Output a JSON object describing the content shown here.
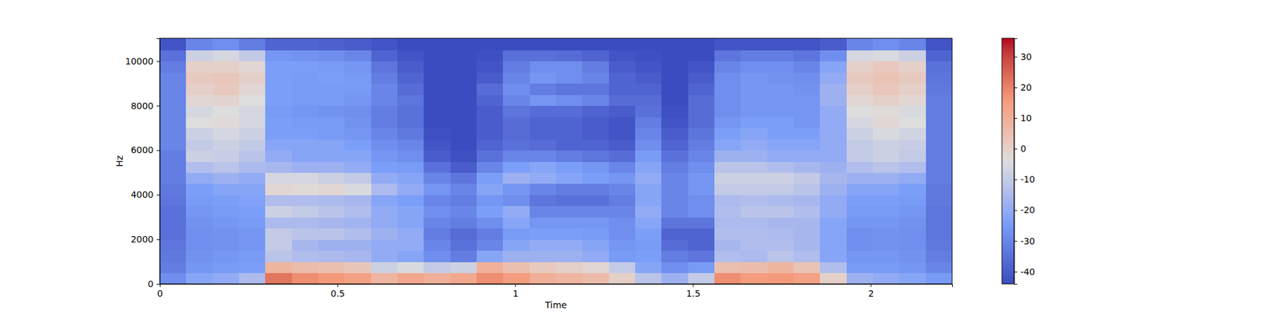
{
  "chart_data": {
    "type": "heatmap",
    "x_label": "Time",
    "y_label": "Hz",
    "xlim": [
      0,
      2.229
    ],
    "xticks": [
      0,
      0.5,
      1,
      1.5,
      2
    ],
    "ylim": [
      0,
      11025
    ],
    "yticks": [
      0,
      2000,
      4000,
      6000,
      8000,
      10000
    ],
    "x_bins": [
      0,
      0.0743,
      0.1486,
      0.2229,
      0.2972,
      0.3715,
      0.4458,
      0.5201,
      0.5944,
      0.6687,
      0.743,
      0.8173,
      0.8916,
      0.9659,
      1.0402,
      1.1145,
      1.1888,
      1.2631,
      1.3374,
      1.4117,
      1.486,
      1.5603,
      1.6346,
      1.7089,
      1.7832,
      1.8575,
      1.9318,
      2.0061,
      2.0804,
      2.1547,
      2.229
    ],
    "y_bins": [
      0,
      500,
      1000,
      1500,
      2000,
      2500,
      3000,
      3500,
      4000,
      4500,
      5000,
      5500,
      6000,
      6500,
      7000,
      7500,
      8000,
      8500,
      9000,
      9500,
      10000,
      10500,
      11025
    ],
    "z": [
      [
        -28,
        -32,
        -33,
        -34,
        -35,
        -35,
        -35,
        -34,
        -33,
        -32,
        -32,
        -32,
        -30,
        -30,
        -30,
        -30,
        -30,
        -30,
        -30,
        -32,
        -35,
        -42
      ],
      [
        -22,
        -26,
        -27,
        -28,
        -28,
        -27,
        -26,
        -25,
        -24,
        -20,
        -14,
        -8,
        -10,
        -8,
        -4,
        -6,
        -2,
        0,
        2,
        0,
        -8,
        -30
      ],
      [
        -20,
        -25,
        -26,
        -27,
        -27,
        -26,
        -25,
        -24,
        -22,
        -18,
        -12,
        -9,
        -8,
        -6,
        -3,
        -4,
        -1,
        2,
        3,
        0,
        -6,
        -28
      ],
      [
        -15,
        -24,
        -25,
        -26,
        -26,
        -25,
        -24,
        -23,
        -22,
        -20,
        -15,
        -12,
        -10,
        -8,
        -6,
        -6,
        -4,
        -2,
        0,
        -2,
        -10,
        -32
      ],
      [
        22,
        8,
        -12,
        -10,
        -10,
        -15,
        -8,
        -14,
        -2,
        -6,
        -16,
        -20,
        -22,
        -24,
        -24,
        -25,
        -24,
        -24,
        -24,
        -24,
        -26,
        -38
      ],
      [
        18,
        6,
        -14,
        -16,
        -12,
        -15,
        -10,
        -14,
        -3,
        -6,
        -18,
        -22,
        -22,
        -24,
        -25,
        -26,
        -25,
        -25,
        -25,
        -24,
        -27,
        -38
      ],
      [
        16,
        5,
        -15,
        -18,
        -12,
        -16,
        -12,
        -15,
        -2,
        -8,
        -18,
        -22,
        -22,
        -25,
        -25,
        -27,
        -25,
        -25,
        -24,
        -25,
        -28,
        -39
      ],
      [
        14,
        3,
        -16,
        -18,
        -14,
        -17,
        -14,
        -16,
        -5,
        -10,
        -20,
        -22,
        -24,
        -26,
        -27,
        -28,
        -26,
        -25,
        -25,
        -26,
        -30,
        -40
      ],
      [
        8,
        -8,
        -20,
        -20,
        -18,
        -20,
        -20,
        -22,
        -15,
        -20,
        -24,
        -26,
        -28,
        -30,
        -32,
        -32,
        -30,
        -30,
        -32,
        -34,
        -38,
        -42
      ],
      [
        12,
        -5,
        -22,
        -20,
        -20,
        -22,
        -22,
        -24,
        -20,
        -22,
        -25,
        -28,
        -30,
        -33,
        -35,
        -35,
        -34,
        -36,
        -38,
        -40,
        -42,
        -44
      ],
      [
        10,
        -10,
        -28,
        -30,
        -32,
        -30,
        -28,
        -30,
        -26,
        -30,
        -35,
        -40,
        -42,
        -43,
        -44,
        -44,
        -44,
        -44,
        -44,
        -44,
        -44,
        -44
      ],
      [
        12,
        -8,
        -32,
        -35,
        -36,
        -32,
        -30,
        -32,
        -30,
        -34,
        -40,
        -43,
        -44,
        -44,
        -44,
        -44,
        -44,
        -44,
        -44,
        -44,
        -44,
        -44
      ],
      [
        18,
        10,
        -22,
        -30,
        -32,
        -28,
        -24,
        -26,
        -22,
        -24,
        -30,
        -35,
        -38,
        -40,
        -40,
        -40,
        -38,
        -36,
        -40,
        -42,
        -43,
        -44
      ],
      [
        15,
        5,
        -18,
        -22,
        -25,
        -22,
        -20,
        -28,
        -26,
        -18,
        -24,
        -30,
        -35,
        -36,
        -36,
        -34,
        -30,
        -28,
        -30,
        -32,
        -35,
        -44
      ],
      [
        10,
        2,
        -18,
        -20,
        -24,
        -26,
        -30,
        -34,
        -30,
        -20,
        -22,
        -30,
        -36,
        -38,
        -38,
        -36,
        -26,
        -32,
        -26,
        -28,
        -35,
        -44
      ],
      [
        8,
        0,
        -18,
        -20,
        -24,
        -26,
        -30,
        -35,
        -32,
        -22,
        -24,
        -32,
        -38,
        -38,
        -38,
        -36,
        -28,
        -34,
        -28,
        -28,
        -36,
        -44
      ],
      [
        6,
        -2,
        -20,
        -22,
        -25,
        -26,
        -30,
        -35,
        -32,
        -24,
        -26,
        -34,
        -38,
        -40,
        -40,
        -38,
        -30,
        -34,
        -30,
        -32,
        -38,
        -44
      ],
      [
        0,
        -10,
        -25,
        -26,
        -28,
        -28,
        -30,
        -32,
        -30,
        -26,
        -30,
        -36,
        -40,
        -42,
        -42,
        -40,
        -36,
        -38,
        -38,
        -40,
        -42,
        -44
      ],
      [
        -12,
        -22,
        -24,
        -25,
        -24,
        -22,
        -20,
        -22,
        -22,
        -20,
        -22,
        -25,
        -28,
        -30,
        -32,
        -35,
        -36,
        -38,
        -40,
        -42,
        -43,
        -44
      ],
      [
        -18,
        -28,
        -32,
        -36,
        -38,
        -34,
        -30,
        -30,
        -30,
        -30,
        -32,
        -35,
        -38,
        -40,
        -42,
        -43,
        -44,
        -44,
        -44,
        -44,
        -44,
        -44
      ],
      [
        -10,
        -25,
        -34,
        -38,
        -38,
        -34,
        -28,
        -28,
        -26,
        -26,
        -28,
        -30,
        -32,
        -34,
        -36,
        -36,
        -36,
        -38,
        -40,
        -42,
        -44,
        -44
      ],
      [
        18,
        5,
        -14,
        -16,
        -14,
        -15,
        -14,
        -15,
        -10,
        -8,
        -12,
        -18,
        -22,
        -24,
        -26,
        -28,
        -28,
        -28,
        -28,
        -30,
        -34,
        -42
      ],
      [
        15,
        6,
        -15,
        -14,
        -14,
        -15,
        -12,
        -14,
        -10,
        -8,
        -12,
        -18,
        -20,
        -22,
        -24,
        -26,
        -26,
        -26,
        -26,
        -28,
        -32,
        -42
      ],
      [
        16,
        8,
        -12,
        -14,
        -15,
        -16,
        -12,
        -15,
        -10,
        -8,
        -14,
        -20,
        -22,
        -24,
        -24,
        -26,
        -26,
        -26,
        -27,
        -28,
        -32,
        -42
      ],
      [
        14,
        4,
        -14,
        -16,
        -16,
        -16,
        -14,
        -16,
        -12,
        -10,
        -16,
        -20,
        -22,
        -24,
        -26,
        -26,
        -26,
        -27,
        -28,
        -30,
        -34,
        -42
      ],
      [
        0,
        -14,
        -22,
        -22,
        -22,
        -22,
        -20,
        -20,
        -18,
        -16,
        -18,
        -20,
        -20,
        -20,
        -20,
        -20,
        -18,
        -18,
        -20,
        -22,
        -28,
        -40
      ],
      [
        -18,
        -25,
        -26,
        -28,
        -28,
        -26,
        -25,
        -24,
        -22,
        -18,
        -14,
        -10,
        -10,
        -8,
        -6,
        -4,
        -2,
        0,
        2,
        0,
        -6,
        -30
      ],
      [
        -20,
        -25,
        -26,
        -27,
        -27,
        -26,
        -25,
        -24,
        -22,
        -18,
        -12,
        -8,
        -8,
        -5,
        -2,
        -3,
        0,
        3,
        4,
        2,
        -5,
        -28
      ],
      [
        -22,
        -26,
        -27,
        -28,
        -28,
        -27,
        -26,
        -25,
        -24,
        -20,
        -14,
        -10,
        -9,
        -7,
        -4,
        -5,
        -2,
        0,
        2,
        0,
        -8,
        -30
      ],
      [
        -25,
        -30,
        -32,
        -33,
        -34,
        -34,
        -34,
        -33,
        -33,
        -32,
        -32,
        -32,
        -32,
        -32,
        -32,
        -32,
        -32,
        -33,
        -34,
        -35,
        -38,
        -42
      ]
    ],
    "colorbar_range": [
      -44,
      36
    ],
    "colorbar_ticks": [
      -40,
      -30,
      -20,
      -10,
      0,
      10,
      20,
      30
    ]
  }
}
